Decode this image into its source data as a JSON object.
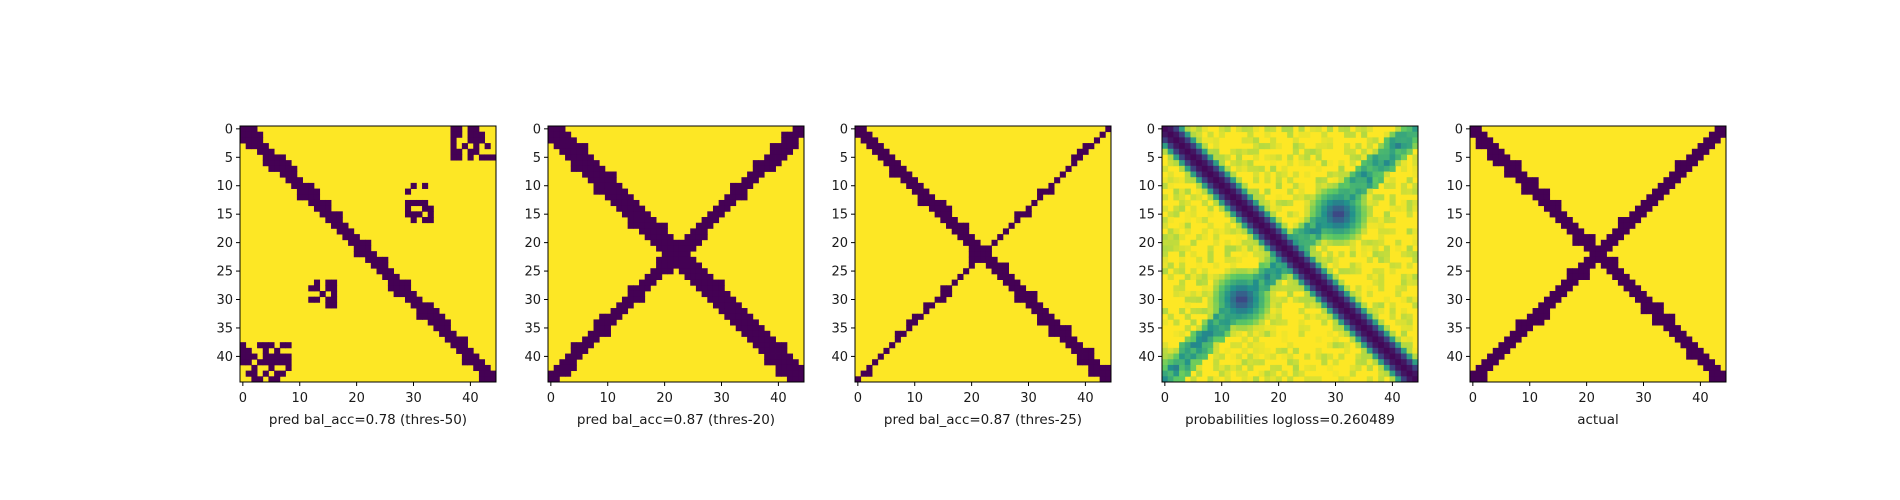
{
  "figure": {
    "panel_count": 5
  },
  "colors": {
    "background": "#fde725",
    "contact": "#440154",
    "probability_colormap": "viridis"
  },
  "chart_data": [
    {
      "type": "heatmap",
      "title": "",
      "xlabel": "pred bal_acc=0.78 (thres-50)",
      "ylabel": "",
      "grid_size": 45,
      "xlim": [
        0,
        45
      ],
      "ylim": [
        45,
        0
      ],
      "xticks": [
        0,
        10,
        20,
        30,
        40
      ],
      "yticks": [
        0,
        5,
        10,
        15,
        20,
        25,
        30,
        35,
        40
      ],
      "value_type": "binary",
      "main_diagonal": {
        "present": true,
        "approx_band_halfwidth": 2
      },
      "anti_diagonal": {
        "present": false
      },
      "off_diagonal_blobs": [
        {
          "row_range": [
            10,
            16
          ],
          "col_range": [
            29,
            33
          ]
        },
        {
          "row_range": [
            27,
            31
          ],
          "col_range": [
            12,
            16
          ]
        },
        {
          "row_range": [
            38,
            44
          ],
          "col_range": [
            0,
            8
          ]
        },
        {
          "row_range": [
            0,
            5
          ],
          "col_range": [
            37,
            44
          ]
        }
      ]
    },
    {
      "type": "heatmap",
      "title": "",
      "xlabel": "pred bal_acc=0.87 (thres-20)",
      "ylabel": "",
      "grid_size": 45,
      "xlim": [
        0,
        45
      ],
      "ylim": [
        45,
        0
      ],
      "xticks": [
        0,
        10,
        20,
        30,
        40
      ],
      "yticks": [
        0,
        5,
        10,
        15,
        20,
        25,
        30,
        35,
        40
      ],
      "value_type": "binary",
      "main_diagonal": {
        "present": true,
        "approx_band_halfwidth": 3
      },
      "anti_diagonal": {
        "present": true,
        "approx_band_halfwidth": 2
      },
      "off_diagonal_blobs": []
    },
    {
      "type": "heatmap",
      "title": "",
      "xlabel": "pred bal_acc=0.87 (thres-25)",
      "ylabel": "",
      "grid_size": 45,
      "xlim": [
        0,
        45
      ],
      "ylim": [
        45,
        0
      ],
      "xticks": [
        0,
        10,
        20,
        30,
        40
      ],
      "yticks": [
        0,
        5,
        10,
        15,
        20,
        25,
        30,
        35,
        40
      ],
      "value_type": "binary",
      "main_diagonal": {
        "present": true,
        "approx_band_halfwidth": 2
      },
      "anti_diagonal": {
        "present": true,
        "approx_band_halfwidth": 1
      },
      "off_diagonal_blobs": []
    },
    {
      "type": "heatmap",
      "title": "",
      "xlabel": "probabilities logloss=0.260489",
      "ylabel": "",
      "grid_size": 45,
      "xlim": [
        0,
        45
      ],
      "ylim": [
        45,
        0
      ],
      "xticks": [
        0,
        10,
        20,
        30,
        40
      ],
      "yticks": [
        0,
        5,
        10,
        15,
        20,
        25,
        30,
        35,
        40
      ],
      "value_type": "probability",
      "value_range": [
        0,
        1
      ],
      "main_diagonal": {
        "present": true,
        "approx_band_halfwidth": 2
      },
      "anti_diagonal": {
        "present": true,
        "approx_band_halfwidth": 2
      },
      "off_diagonal_blobs": [
        {
          "row_range": [
            12,
            18
          ],
          "col_range": [
            28,
            33
          ],
          "peak_value": 0.15
        },
        {
          "row_range": [
            27,
            33
          ],
          "col_range": [
            11,
            16
          ],
          "peak_value": 0.15
        }
      ]
    },
    {
      "type": "heatmap",
      "title": "",
      "xlabel": "actual",
      "ylabel": "",
      "grid_size": 45,
      "xlim": [
        0,
        45
      ],
      "ylim": [
        45,
        0
      ],
      "xticks": [
        0,
        10,
        20,
        30,
        40
      ],
      "yticks": [
        0,
        5,
        10,
        15,
        20,
        25,
        30,
        35,
        40
      ],
      "value_type": "binary",
      "main_diagonal": {
        "present": true,
        "approx_band_halfwidth": 2
      },
      "anti_diagonal": {
        "present": true,
        "approx_band_halfwidth": 2
      },
      "off_diagonal_blobs": []
    }
  ]
}
